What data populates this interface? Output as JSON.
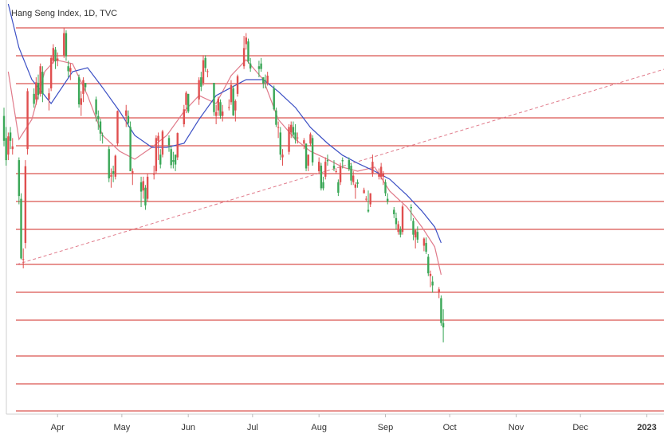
{
  "chart_data": {
    "type": "candlestick",
    "title": "Hang Seng Index, 1D, TVC",
    "xlim": [
      0,
      308
    ],
    "ylim": [
      15600,
      23100
    ],
    "xticks": [
      {
        "value": 25,
        "label": "Apr"
      },
      {
        "value": 55,
        "label": "May"
      },
      {
        "value": 86,
        "label": "Jun"
      },
      {
        "value": 116,
        "label": "Jul"
      },
      {
        "value": 147,
        "label": "Aug"
      },
      {
        "value": 178,
        "label": "Sep"
      },
      {
        "value": 208,
        "label": "Oct"
      },
      {
        "value": 239,
        "label": "Nov"
      },
      {
        "value": 269,
        "label": "Dec"
      },
      {
        "value": 300,
        "label": "2023"
      }
    ],
    "up_color": "#e04f4f",
    "down_color": "#3aa757",
    "levels": [
      22595,
      22090,
      21586,
      20965,
      20461,
      19956,
      19451,
      18946,
      18312,
      17807,
      17302,
      16653,
      16148,
      15658
    ],
    "level_color": "#d9534f",
    "candles": {
      "x": [
        0,
        1,
        2,
        3,
        4,
        7,
        8,
        9,
        10,
        11,
        14,
        15,
        16,
        17,
        18,
        21,
        22,
        23,
        24,
        25,
        28,
        29,
        30,
        31,
        35,
        36,
        37,
        38,
        43,
        44,
        45,
        46,
        49,
        50,
        51,
        52,
        53,
        57,
        58,
        59,
        60,
        64,
        65,
        66,
        67,
        70,
        71,
        72,
        73,
        74,
        77,
        78,
        79,
        80,
        81,
        84,
        85,
        86,
        91,
        92,
        93,
        94,
        95,
        98,
        99,
        100,
        101,
        102,
        105,
        106,
        107,
        108,
        109,
        112,
        113,
        114,
        115,
        119,
        120,
        121,
        122,
        123,
        126,
        127,
        128,
        129,
        130,
        133,
        134,
        135,
        136,
        137,
        140,
        141,
        142,
        143,
        144,
        147,
        148,
        149,
        150,
        151,
        154,
        155,
        156,
        157,
        158,
        161,
        162,
        163,
        164,
        165,
        168,
        169,
        170,
        171,
        172,
        175,
        176,
        177,
        178,
        179,
        182,
        183,
        184,
        185,
        186,
        190,
        191,
        192,
        193,
        196,
        197,
        198,
        199,
        200,
        203,
        204,
        205
      ],
      "ohlc": [
        [
          21000,
          21150,
          20450,
          20550
        ],
        [
          20600,
          20800,
          20100,
          20200
        ],
        [
          20300,
          20700,
          20200,
          20630
        ],
        [
          20700,
          20800,
          20400,
          20550
        ],
        [
          20400,
          20600,
          20300,
          20450
        ],
        [
          20200,
          20250,
          19400,
          19550
        ],
        [
          19500,
          19600,
          18400,
          18420
        ],
        [
          18400,
          18600,
          18240,
          18410
        ],
        [
          18700,
          20200,
          18600,
          20090
        ],
        [
          20400,
          21500,
          20300,
          21450
        ],
        [
          21400,
          21500,
          21150,
          21220
        ],
        [
          21300,
          21700,
          21200,
          21610
        ],
        [
          21600,
          21750,
          21300,
          21380
        ],
        [
          21400,
          21950,
          21350,
          21900
        ],
        [
          21800,
          21900,
          21250,
          21400
        ],
        [
          21300,
          21500,
          21100,
          21410
        ],
        [
          21500,
          22100,
          21450,
          22050
        ],
        [
          22000,
          22300,
          21950,
          22230
        ],
        [
          22200,
          22250,
          21850,
          21990
        ],
        [
          22000,
          22150,
          21900,
          22040
        ],
        [
          22100,
          22600,
          22050,
          22500
        ],
        [
          22500,
          22550,
          22000,
          22080
        ],
        [
          21900,
          22000,
          21700,
          21810
        ],
        [
          21800,
          21950,
          21650,
          21870
        ],
        [
          21700,
          21750,
          21150,
          21210
        ],
        [
          21200,
          21450,
          21000,
          21320
        ],
        [
          21400,
          21700,
          21250,
          21650
        ],
        [
          21600,
          21600,
          21450,
          21520
        ],
        [
          21300,
          21350,
          20900,
          21030
        ],
        [
          21000,
          21100,
          20750,
          20940
        ],
        [
          20900,
          20950,
          20550,
          20680
        ],
        [
          20650,
          20700,
          20500,
          20640
        ],
        [
          20400,
          20450,
          19800,
          19870
        ],
        [
          19900,
          20050,
          19700,
          19930
        ],
        [
          20000,
          20100,
          19800,
          19950
        ],
        [
          19900,
          20300,
          19850,
          20280
        ],
        [
          20500,
          21100,
          20450,
          21090
        ],
        [
          21000,
          21200,
          20800,
          21100
        ],
        [
          21000,
          21100,
          20800,
          20870
        ],
        [
          20800,
          20900,
          20000,
          20000
        ],
        [
          19950,
          20050,
          19750,
          20000
        ],
        [
          19800,
          19900,
          19350,
          19630
        ],
        [
          19650,
          19900,
          19500,
          19820
        ],
        [
          19700,
          19750,
          19300,
          19380
        ],
        [
          19500,
          19950,
          19450,
          19900
        ],
        [
          19950,
          20100,
          19850,
          19950
        ],
        [
          20000,
          20650,
          19950,
          20600
        ],
        [
          20550,
          20700,
          20200,
          20640
        ],
        [
          20300,
          20400,
          20050,
          20120
        ],
        [
          20300,
          20750,
          20250,
          20720
        ],
        [
          20600,
          20650,
          20350,
          20470
        ],
        [
          20400,
          20450,
          20050,
          20110
        ],
        [
          20200,
          20350,
          20050,
          20170
        ],
        [
          20300,
          20300,
          20000,
          20120
        ],
        [
          20250,
          20700,
          20200,
          20690
        ],
        [
          20850,
          21200,
          20800,
          21120
        ],
        [
          21200,
          21450,
          21050,
          21420
        ],
        [
          21400,
          21400,
          21050,
          21080
        ],
        [
          21300,
          21700,
          21200,
          21650
        ],
        [
          21700,
          21800,
          21450,
          21530
        ],
        [
          21600,
          22100,
          21550,
          22010
        ],
        [
          22050,
          22100,
          21800,
          21870
        ],
        [
          21800,
          21850,
          21700,
          21810
        ],
        [
          21600,
          21600,
          21000,
          21070
        ],
        [
          21000,
          21200,
          20850,
          21070
        ],
        [
          21100,
          21350,
          21000,
          21310
        ],
        [
          21250,
          21300,
          20950,
          21000
        ],
        [
          21000,
          21200,
          20900,
          21080
        ],
        [
          21150,
          21300,
          21100,
          21160
        ],
        [
          21250,
          21650,
          21200,
          21560
        ],
        [
          21500,
          21550,
          21000,
          21010
        ],
        [
          21100,
          21300,
          20900,
          21270
        ],
        [
          21400,
          21750,
          21350,
          21720
        ],
        [
          21900,
          22450,
          21850,
          22230
        ],
        [
          22300,
          22500,
          22200,
          22420
        ],
        [
          22350,
          22400,
          21950,
          21990
        ],
        [
          21950,
          22050,
          21800,
          21860
        ],
        [
          21900,
          22000,
          21700,
          21850
        ],
        [
          21950,
          22050,
          21800,
          21850
        ],
        [
          21700,
          21700,
          21500,
          21590
        ],
        [
          21650,
          21750,
          21500,
          21640
        ],
        [
          21600,
          21800,
          21550,
          21730
        ],
        [
          21500,
          21550,
          21100,
          21120
        ],
        [
          21100,
          21150,
          20800,
          20840
        ],
        [
          20800,
          20900,
          20600,
          20800
        ],
        [
          20700,
          20800,
          20200,
          20300
        ],
        [
          20250,
          20400,
          20100,
          20300
        ],
        [
          20350,
          20850,
          20300,
          20800
        ],
        [
          20700,
          20900,
          20600,
          20840
        ],
        [
          20800,
          20900,
          20600,
          20660
        ],
        [
          20700,
          20850,
          20500,
          20570
        ],
        [
          20600,
          20700,
          20500,
          20610
        ],
        [
          20500,
          20600,
          20400,
          20560
        ],
        [
          20500,
          20500,
          20000,
          20050
        ],
        [
          20100,
          20300,
          20000,
          20300
        ],
        [
          20500,
          20700,
          20450,
          20670
        ],
        [
          20600,
          20650,
          20100,
          20160
        ],
        [
          20000,
          20250,
          19950,
          20170
        ],
        [
          20100,
          20150,
          19650,
          19690
        ],
        [
          19800,
          19900,
          19650,
          19690
        ],
        [
          19900,
          20250,
          19850,
          20170
        ],
        [
          20200,
          20300,
          20100,
          20180
        ],
        [
          20100,
          20200,
          20000,
          20050
        ],
        [
          20000,
          20050,
          19950,
          20000
        ],
        [
          19800,
          19850,
          19550,
          19610
        ],
        [
          19800,
          20150,
          19750,
          20080
        ],
        [
          20200,
          20250,
          20050,
          20180
        ],
        [
          20200,
          20250,
          20000,
          20040
        ],
        [
          20100,
          20150,
          19750,
          19830
        ],
        [
          19800,
          20000,
          19750,
          19920
        ],
        [
          19700,
          19800,
          19500,
          19760
        ],
        [
          19800,
          19850,
          19700,
          19770
        ],
        [
          19600,
          19700,
          19600,
          19660
        ],
        [
          19500,
          19550,
          19450,
          19500
        ],
        [
          19300,
          19650,
          19250,
          19270
        ],
        [
          19400,
          19600,
          19350,
          19600
        ],
        [
          19950,
          20300,
          19900,
          20170
        ],
        [
          19900,
          20050,
          19850,
          19950
        ],
        [
          19900,
          20150,
          19850,
          20080
        ],
        [
          19900,
          20000,
          19750,
          19950
        ],
        [
          19800,
          19850,
          19550,
          19600
        ],
        [
          19500,
          19600,
          19400,
          19450
        ],
        [
          19300,
          19350,
          19150,
          19220
        ],
        [
          19150,
          19250,
          18950,
          19040
        ],
        [
          18900,
          19100,
          18850,
          19040
        ],
        [
          18950,
          19000,
          18800,
          18850
        ],
        [
          18900,
          19400,
          18850,
          19360
        ],
        [
          19350,
          19400,
          19100,
          19330
        ],
        [
          19100,
          19150,
          18750,
          18850
        ],
        [
          18800,
          18950,
          18600,
          18930
        ],
        [
          18900,
          19000,
          18700,
          18760
        ],
        [
          18650,
          18800,
          18550,
          18780
        ],
        [
          18700,
          18800,
          18500,
          18540
        ],
        [
          18450,
          18500,
          18100,
          18150
        ],
        [
          18100,
          18200,
          17900,
          18140
        ],
        [
          18000,
          18100,
          17800,
          17930
        ],
        [
          17800,
          17900,
          17700,
          17860
        ],
        [
          17700,
          17750,
          17200,
          17250
        ],
        [
          17250,
          17500,
          16900,
          17170
        ]
      ]
    },
    "series": [
      {
        "color": "#e07a8a",
        "x": [
          2,
          7,
          13,
          19,
          24,
          32,
          39,
          46,
          54,
          61,
          69,
          76,
          84,
          91,
          99,
          106,
          113,
          121,
          128,
          136,
          143,
          151,
          158,
          165,
          173,
          180,
          188,
          195,
          201,
          204
        ],
        "values": [
          21802,
          20577,
          20937,
          21802,
          22018,
          21946,
          21370,
          20649,
          20360,
          20216,
          20432,
          20649,
          21081,
          21370,
          21225,
          21730,
          22018,
          21658,
          20937,
          20577,
          20360,
          20216,
          20072,
          19999,
          20072,
          19639,
          19351,
          18990,
          18630,
          18125
        ]
      },
      {
        "color": "#3b4fc4",
        "x": [
          2,
          7,
          13,
          22,
          32,
          39,
          46,
          54,
          61,
          69,
          76,
          84,
          91,
          99,
          106,
          113,
          121,
          128,
          136,
          143,
          151,
          158,
          165,
          173,
          180,
          188,
          195,
          201,
          204
        ],
        "values": [
          23028,
          22235,
          21658,
          21225,
          21802,
          21874,
          21514,
          21081,
          20649,
          20432,
          20432,
          20504,
          20937,
          21370,
          21514,
          21658,
          21658,
          21442,
          21153,
          20793,
          20504,
          20288,
          20144,
          19999,
          19855,
          19567,
          19279,
          18990,
          18702
        ]
      }
    ],
    "trendline": {
      "color": "#e07a8a",
      "x": [
        6,
        308
      ],
      "values": [
        18312,
        21845
      ]
    }
  }
}
